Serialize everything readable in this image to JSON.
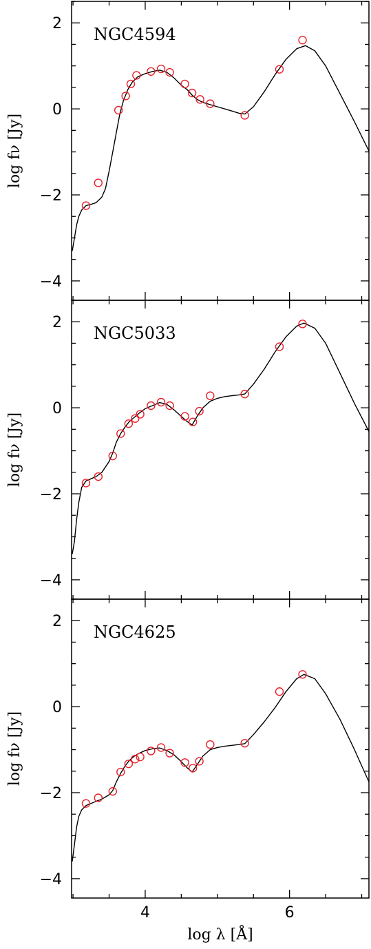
{
  "chart_data": {
    "type": "line",
    "xlabel": "log λ [Å]",
    "x_tick_labels": [
      "4",
      "6"
    ],
    "y_tick_labels": [
      "−4",
      "−2",
      "0",
      "2"
    ],
    "xlim": [
      2.98,
      7.1
    ],
    "ylim": [
      -4.45,
      2.5
    ],
    "x_major_ticks": [
      4,
      6
    ],
    "x_minor_step": 0.5,
    "y_major_ticks": [
      -4,
      -2,
      0,
      2
    ],
    "y_minor_step": 0.5,
    "grid": false,
    "colors": {
      "model": "#000000",
      "observed": "#e8202a"
    },
    "panels": [
      {
        "name": "NGC4594",
        "ylabel": "log fν [Jy]",
        "model": {
          "x": [
            2.99,
            3.02,
            3.05,
            3.08,
            3.12,
            3.18,
            3.25,
            3.32,
            3.4,
            3.45,
            3.5,
            3.55,
            3.6,
            3.65,
            3.7,
            3.76,
            3.82,
            3.9,
            4.0,
            4.1,
            4.2,
            4.3,
            4.4,
            4.5,
            4.58,
            4.65,
            4.72,
            4.8,
            4.9,
            5.0,
            5.1,
            5.2,
            5.3,
            5.38,
            5.5,
            5.65,
            5.8,
            5.95,
            6.1,
            6.22,
            6.35,
            6.5,
            6.7,
            6.9,
            7.1
          ],
          "y": [
            -3.3,
            -3.0,
            -2.7,
            -2.5,
            -2.35,
            -2.25,
            -2.22,
            -2.18,
            -2.05,
            -1.85,
            -1.45,
            -1.0,
            -0.55,
            -0.1,
            0.2,
            0.45,
            0.62,
            0.75,
            0.82,
            0.87,
            0.9,
            0.85,
            0.72,
            0.55,
            0.45,
            0.32,
            0.22,
            0.15,
            0.1,
            0.05,
            0.0,
            -0.05,
            -0.1,
            -0.12,
            0.05,
            0.4,
            0.8,
            1.15,
            1.4,
            1.47,
            1.35,
            1.0,
            0.35,
            -0.3,
            -0.98
          ]
        },
        "points": {
          "x": [
            3.18,
            3.35,
            3.63,
            3.73,
            3.8,
            3.88,
            4.08,
            4.22,
            4.34,
            4.55,
            4.65,
            4.76,
            4.9,
            5.38,
            5.86,
            6.18
          ],
          "y": [
            -2.25,
            -1.72,
            -0.03,
            0.3,
            0.58,
            0.78,
            0.87,
            0.93,
            0.85,
            0.58,
            0.37,
            0.22,
            0.12,
            -0.15,
            0.92,
            1.6
          ]
        }
      },
      {
        "name": "NGC5033",
        "ylabel": "log fν [Jy]",
        "model": {
          "x": [
            2.99,
            3.02,
            3.05,
            3.08,
            3.12,
            3.18,
            3.25,
            3.32,
            3.4,
            3.5,
            3.55,
            3.6,
            3.66,
            3.72,
            3.78,
            3.85,
            3.92,
            4.0,
            4.1,
            4.2,
            4.3,
            4.4,
            4.5,
            4.58,
            4.65,
            4.72,
            4.8,
            4.9,
            5.0,
            5.1,
            5.2,
            5.3,
            5.38,
            5.5,
            5.65,
            5.8,
            5.95,
            6.1,
            6.2,
            6.35,
            6.5,
            6.7,
            6.9,
            7.1
          ],
          "y": [
            -3.4,
            -3.1,
            -2.6,
            -2.2,
            -1.85,
            -1.7,
            -1.65,
            -1.6,
            -1.5,
            -1.25,
            -1.05,
            -0.8,
            -0.6,
            -0.45,
            -0.32,
            -0.22,
            -0.12,
            -0.02,
            0.05,
            0.12,
            0.08,
            -0.05,
            -0.2,
            -0.32,
            -0.4,
            -0.2,
            0.0,
            0.15,
            0.22,
            0.26,
            0.28,
            0.3,
            0.32,
            0.55,
            0.9,
            1.3,
            1.65,
            1.9,
            1.97,
            1.85,
            1.5,
            0.8,
            0.1,
            -0.55
          ]
        },
        "points": {
          "x": [
            3.18,
            3.35,
            3.55,
            3.66,
            3.77,
            3.86,
            3.93,
            4.08,
            4.22,
            4.34,
            4.55,
            4.66,
            4.75,
            4.9,
            5.38,
            5.86,
            6.18
          ],
          "y": [
            -1.75,
            -1.6,
            -1.12,
            -0.6,
            -0.37,
            -0.25,
            -0.15,
            0.05,
            0.13,
            0.05,
            -0.2,
            -0.33,
            -0.08,
            0.28,
            0.32,
            1.42,
            1.95
          ]
        }
      },
      {
        "name": "NGC4625",
        "ylabel": "log fν [Jy]",
        "model": {
          "x": [
            2.99,
            3.02,
            3.05,
            3.08,
            3.12,
            3.18,
            3.25,
            3.32,
            3.4,
            3.5,
            3.55,
            3.6,
            3.66,
            3.72,
            3.78,
            3.85,
            3.92,
            4.0,
            4.1,
            4.2,
            4.3,
            4.4,
            4.5,
            4.58,
            4.65,
            4.72,
            4.8,
            4.9,
            5.0,
            5.1,
            5.2,
            5.3,
            5.38,
            5.5,
            5.65,
            5.8,
            5.95,
            6.1,
            6.2,
            6.35,
            6.5,
            6.7,
            6.9,
            7.1
          ],
          "y": [
            -3.6,
            -3.2,
            -2.8,
            -2.55,
            -2.4,
            -2.3,
            -2.25,
            -2.2,
            -2.15,
            -2.05,
            -1.95,
            -1.75,
            -1.55,
            -1.38,
            -1.25,
            -1.15,
            -1.08,
            -1.02,
            -0.98,
            -0.96,
            -1.02,
            -1.12,
            -1.28,
            -1.42,
            -1.52,
            -1.35,
            -1.15,
            -1.0,
            -0.95,
            -0.92,
            -0.9,
            -0.88,
            -0.86,
            -0.65,
            -0.35,
            -0.02,
            0.35,
            0.65,
            0.75,
            0.65,
            0.3,
            -0.3,
            -1.0,
            -1.75
          ]
        },
        "points": {
          "x": [
            3.18,
            3.35,
            3.55,
            3.66,
            3.77,
            3.86,
            3.93,
            4.08,
            4.22,
            4.34,
            4.55,
            4.66,
            4.75,
            4.9,
            5.38,
            5.86,
            6.18
          ],
          "y": [
            -2.25,
            -2.12,
            -1.97,
            -1.52,
            -1.33,
            -1.22,
            -1.17,
            -1.03,
            -0.95,
            -1.08,
            -1.3,
            -1.43,
            -1.27,
            -0.88,
            -0.85,
            0.35,
            0.75
          ]
        }
      }
    ]
  }
}
